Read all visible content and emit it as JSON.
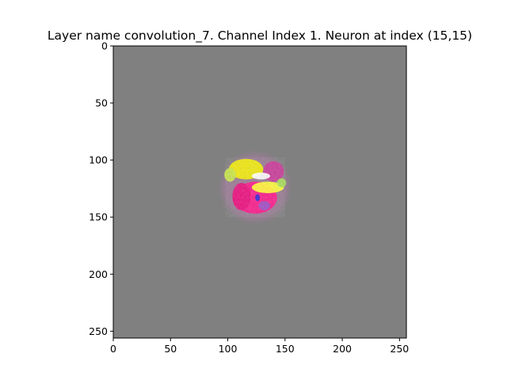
{
  "chart_data": {
    "type": "heatmap",
    "title": "Layer name convolution_7. Channel Index 1. Neuron at index (15,15)",
    "xlabel": "",
    "ylabel": "",
    "xlim": [
      0,
      256
    ],
    "ylim": [
      256,
      0
    ],
    "x_ticks": [
      0,
      50,
      100,
      150,
      200,
      250
    ],
    "y_ticks": [
      0,
      50,
      100,
      150,
      200,
      250
    ],
    "x_tick_labels": [
      "0",
      "50",
      "100",
      "150",
      "200",
      "250"
    ],
    "y_tick_labels": [
      "0",
      "50",
      "100",
      "150",
      "200",
      "250"
    ],
    "image_size": [
      256,
      256
    ],
    "background_color": "#808080",
    "pattern": {
      "center": [
        124,
        124
      ],
      "radius": 26,
      "blobs": [
        {
          "color": "#ff1a8c",
          "cx": 124,
          "cy": 133,
          "rx": 19,
          "ry": 14
        },
        {
          "color": "#e8137f",
          "cx": 112,
          "cy": 132,
          "rx": 8,
          "ry": 12
        },
        {
          "color": "#cc3a9a",
          "cx": 140,
          "cy": 110,
          "rx": 9,
          "ry": 9
        },
        {
          "color": "#f5f00a",
          "cx": 116,
          "cy": 108,
          "rx": 15,
          "ry": 9
        },
        {
          "color": "#ffff3a",
          "cx": 135,
          "cy": 124,
          "rx": 14,
          "ry": 5
        },
        {
          "color": "#c9e84c",
          "cx": 102,
          "cy": 113,
          "rx": 5,
          "ry": 6
        },
        {
          "color": "#a8e05a",
          "cx": 147,
          "cy": 120,
          "rx": 4,
          "ry": 4
        },
        {
          "color": "#ffffff",
          "cx": 129,
          "cy": 114,
          "rx": 8,
          "ry": 3
        },
        {
          "color": "#2a2adc",
          "cx": 126,
          "cy": 133,
          "rx": 2,
          "ry": 3
        },
        {
          "color": "#9a55c8",
          "cx": 132,
          "cy": 140,
          "rx": 5,
          "ry": 4
        }
      ]
    }
  }
}
